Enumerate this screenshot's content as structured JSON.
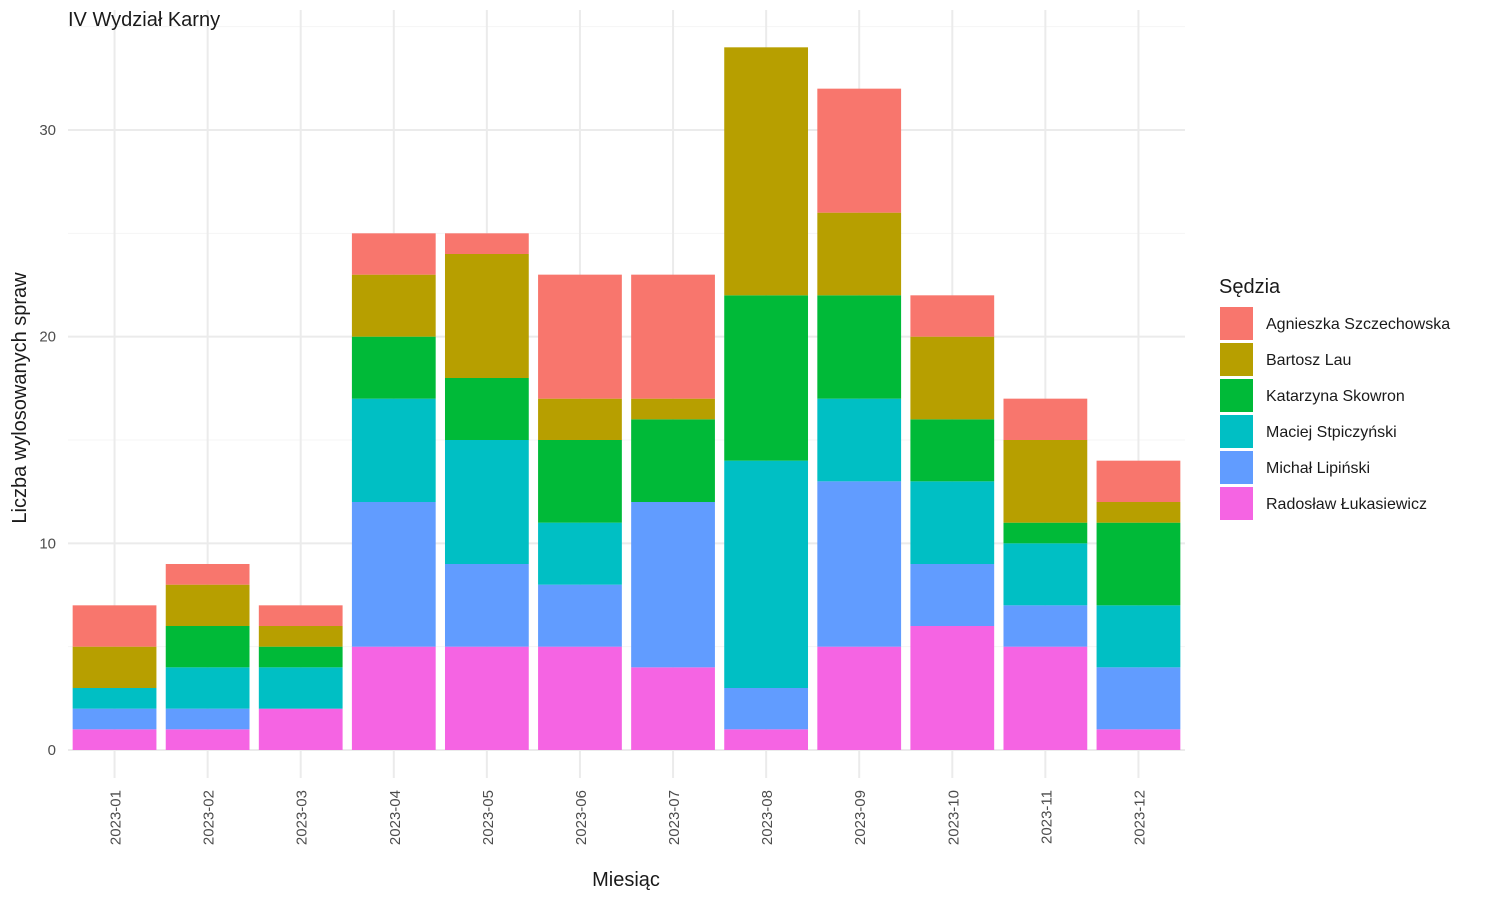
{
  "chart_data": {
    "type": "bar",
    "stacked": true,
    "title": "IV Wydział Karny",
    "xlabel": "Miesiąc",
    "ylabel": "Liczba wylosowanych spraw",
    "ylim": [
      0,
      35
    ],
    "yticks": [
      0,
      10,
      20,
      30
    ],
    "grid": true,
    "legend_title": "Sędzia",
    "legend_position": "right",
    "categories": [
      "2023-01",
      "2023-02",
      "2023-03",
      "2023-04",
      "2023-05",
      "2023-06",
      "2023-07",
      "2023-08",
      "2023-09",
      "2023-10",
      "2023-11",
      "2023-12"
    ],
    "series": [
      {
        "name": "Agnieszka Szczechowska",
        "color": "#F8766D",
        "values": [
          2,
          1,
          1,
          2,
          1,
          6,
          6,
          0,
          6,
          2,
          2,
          2
        ]
      },
      {
        "name": "Bartosz Lau",
        "color": "#B79F00",
        "values": [
          2,
          2,
          1,
          3,
          6,
          2,
          1,
          12,
          4,
          4,
          4,
          1
        ]
      },
      {
        "name": "Katarzyna Skowron",
        "color": "#00BA38",
        "values": [
          0,
          2,
          1,
          3,
          3,
          4,
          4,
          8,
          5,
          3,
          1,
          4
        ]
      },
      {
        "name": "Maciej Stpiczyński",
        "color": "#00BFC4",
        "values": [
          1,
          2,
          2,
          5,
          6,
          3,
          0,
          11,
          4,
          4,
          3,
          3
        ]
      },
      {
        "name": "Michał Lipiński",
        "color": "#619CFF",
        "values": [
          1,
          1,
          0,
          7,
          4,
          3,
          8,
          2,
          8,
          3,
          2,
          3
        ]
      },
      {
        "name": "Radosław Łukasiewicz",
        "color": "#F564E3",
        "values": [
          1,
          1,
          2,
          5,
          5,
          5,
          4,
          1,
          5,
          6,
          5,
          1
        ]
      }
    ]
  }
}
